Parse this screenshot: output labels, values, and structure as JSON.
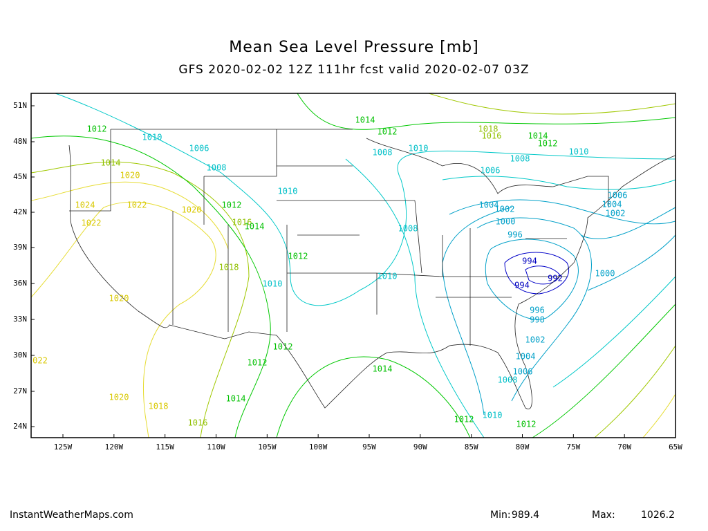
{
  "title": "Mean Sea Level Pressure [mb]",
  "subtitle": "GFS 2020-02-02 12Z 111hr fcst valid 2020-02-07 03Z",
  "lat_labels": [
    "51N",
    "48N",
    "45N",
    "42N",
    "39N",
    "36N",
    "33N",
    "30N",
    "27N",
    "24N"
  ],
  "lon_labels": [
    "125W",
    "120W",
    "115W",
    "110W",
    "105W",
    "100W",
    "95W",
    "90W",
    "85W",
    "80W",
    "75W",
    "70W",
    "65W"
  ],
  "contour_labels": [
    "1012",
    "1010",
    "1006",
    "1008",
    "1014",
    "1020",
    "1024",
    "1022",
    "1020",
    "1022",
    "1012",
    "1016",
    "1014",
    "1010",
    "1012",
    "1018",
    "1010",
    "1020",
    "1012",
    "1012",
    "1014",
    "1020",
    "1018",
    "1016",
    "1014",
    "1012",
    "1008",
    "1010",
    "1018",
    "1016",
    "1014",
    "1012",
    "1010",
    "1008",
    "1006",
    "1008",
    "1010",
    "1004",
    "1002",
    "1000",
    "996",
    "994",
    "992",
    "994",
    "996",
    "998",
    "1002",
    "1004",
    "1006",
    "1008",
    "1010",
    "1012",
    "1012",
    "1014",
    "1000",
    "1006",
    "1004",
    "1002",
    "022"
  ],
  "footer": {
    "site": "InstantWeatherMaps.com",
    "min_label": "Min:",
    "min": 989.4,
    "max_label": "Max:",
    "max": 1026.2
  }
}
